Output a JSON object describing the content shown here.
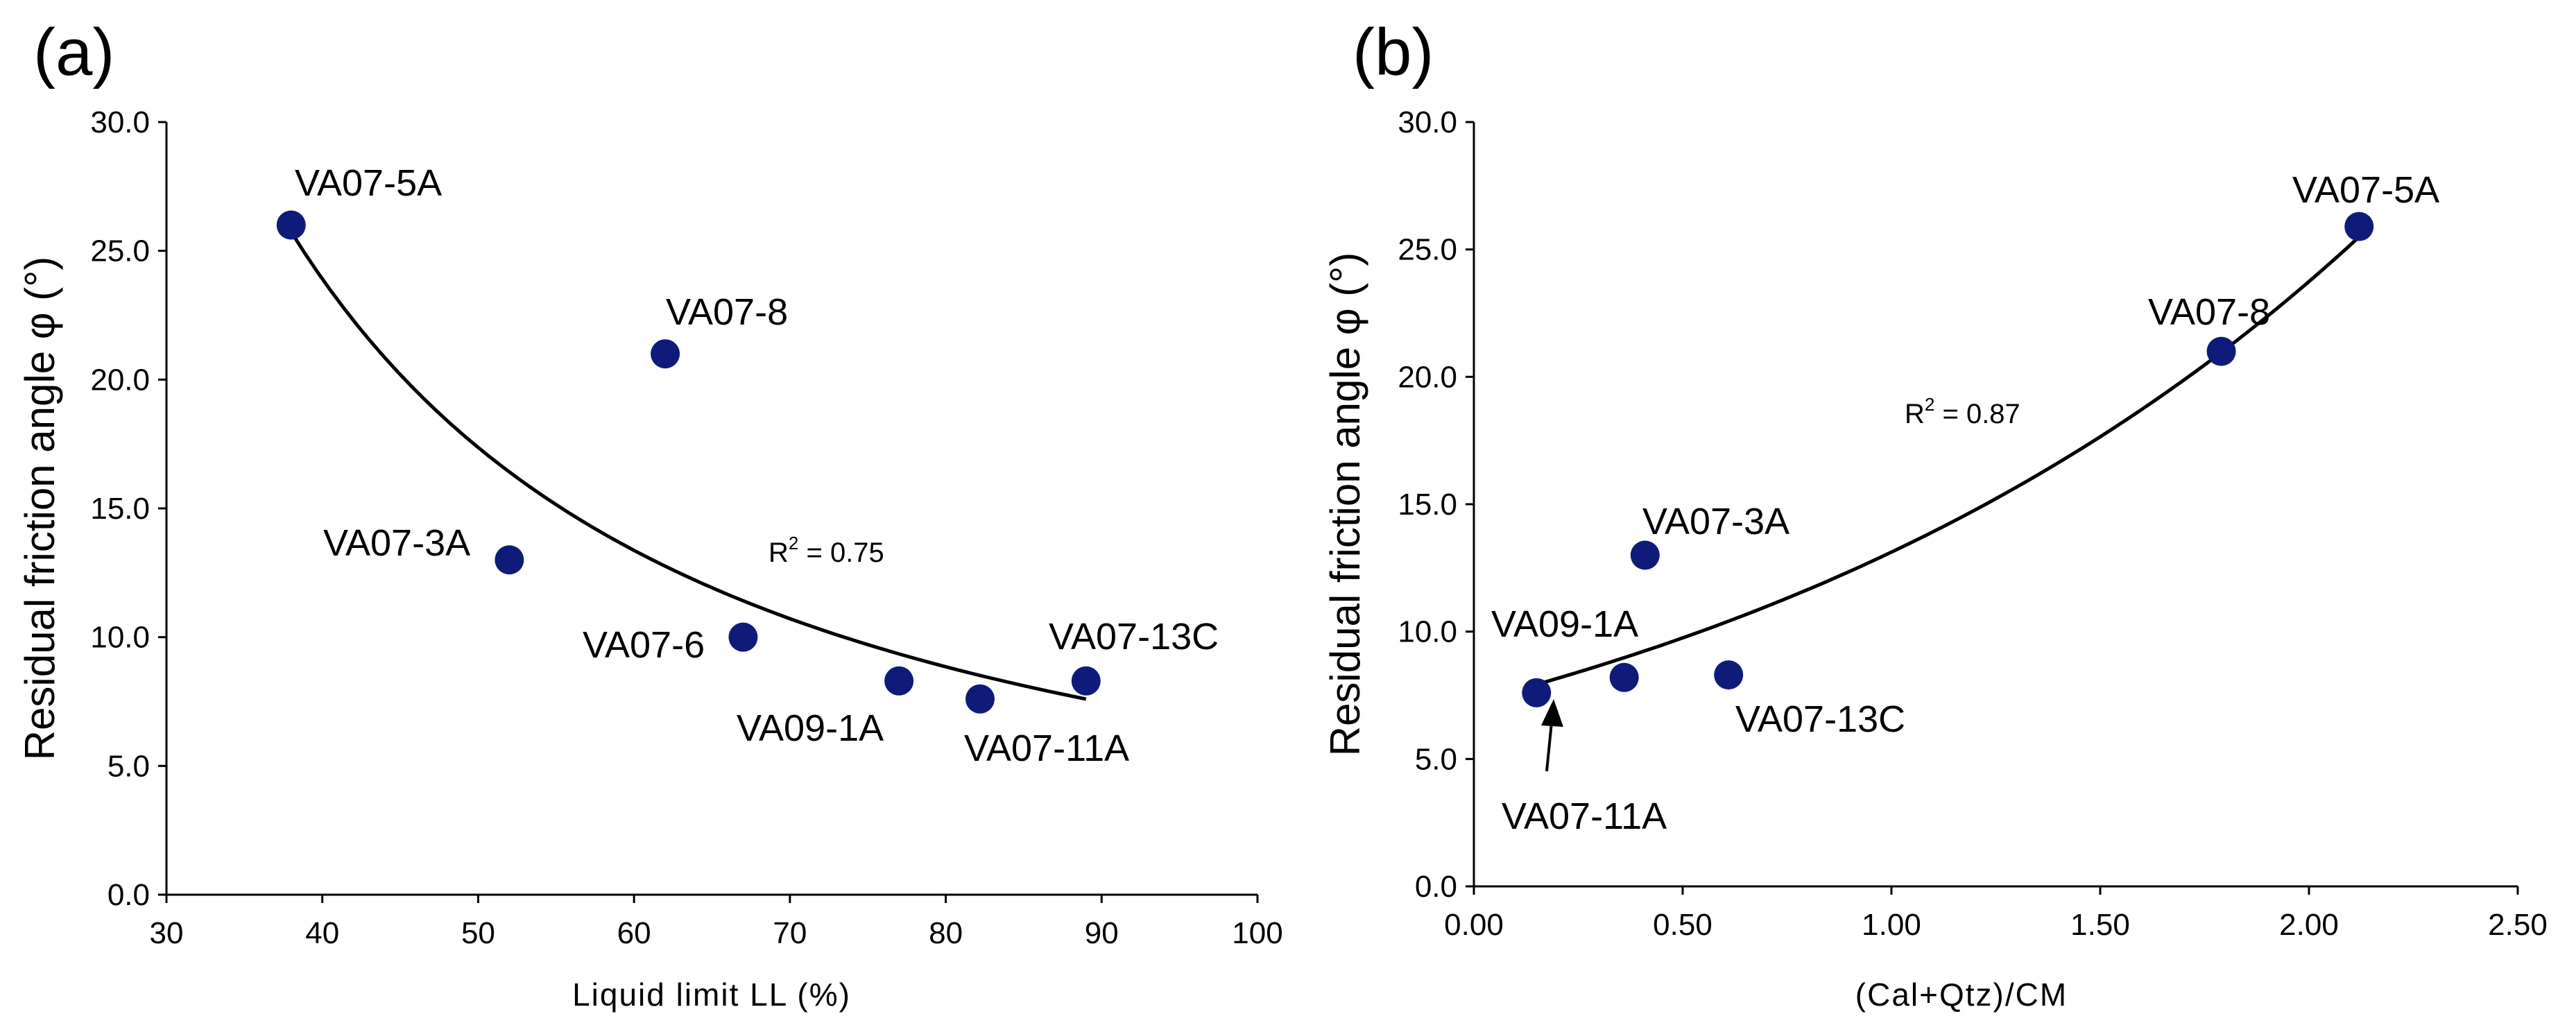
{
  "chart_data": [
    {
      "type": "scatter",
      "panel": "(a)",
      "xlabel": "Liquid limit LL (%)",
      "ylabel": "Residual friction angle φ (°)",
      "xlim": [
        30,
        100
      ],
      "ylim": [
        0,
        30
      ],
      "xticks": [
        "30",
        "40",
        "50",
        "60",
        "70",
        "80",
        "90",
        "100"
      ],
      "yticks": [
        "0.0",
        "5.0",
        "10.0",
        "15.0",
        "20.0",
        "25.0",
        "30.0"
      ],
      "grid": false,
      "points": [
        {
          "label": "VA07-5A",
          "x": 38,
          "y": 26.0
        },
        {
          "label": "VA07-8",
          "x": 62,
          "y": 21.0
        },
        {
          "label": "VA07-3A",
          "x": 52,
          "y": 13.0
        },
        {
          "label": "VA07-6",
          "x": 67,
          "y": 10.0
        },
        {
          "label": "VA09-1A",
          "x": 77,
          "y": 8.3
        },
        {
          "label": "VA07-11A",
          "x": 82.2,
          "y": 7.6
        },
        {
          "label": "VA07-13C",
          "x": 89,
          "y": 8.3
        }
      ],
      "trendline": {
        "type": "power",
        "r2_prefix": "R",
        "r2_exp": "2",
        "r2_value": " = 0.75",
        "x_range": [
          38,
          89
        ]
      }
    },
    {
      "type": "scatter",
      "panel": "(b)",
      "xlabel": "(Cal+Qtz)/CM",
      "ylabel": "Residual friction angle φ (°)",
      "xlim": [
        0,
        2.5
      ],
      "ylim": [
        0,
        30
      ],
      "xticks": [
        "0.00",
        "0.50",
        "1.00",
        "1.50",
        "2.00",
        "2.50"
      ],
      "yticks": [
        "0.0",
        "5.0",
        "10.0",
        "15.0",
        "20.0",
        "25.0",
        "30.0"
      ],
      "grid": false,
      "points": [
        {
          "label": "VA07-5A",
          "x": 2.12,
          "y": 25.9
        },
        {
          "label": "VA07-8",
          "x": 1.79,
          "y": 21.0
        },
        {
          "label": "VA07-3A",
          "x": 0.41,
          "y": 13.0
        },
        {
          "label": "VA09-1A",
          "x": 0.36,
          "y": 8.2
        },
        {
          "label": "VA07-13C",
          "x": 0.61,
          "y": 8.3
        },
        {
          "label": "VA07-11A",
          "x": 0.15,
          "y": 7.6
        }
      ],
      "trendline": {
        "type": "exponential",
        "r2_prefix": "R",
        "r2_exp": "2",
        "r2_value": " = 0.87",
        "x_range": [
          0.15,
          2.12
        ]
      }
    }
  ]
}
